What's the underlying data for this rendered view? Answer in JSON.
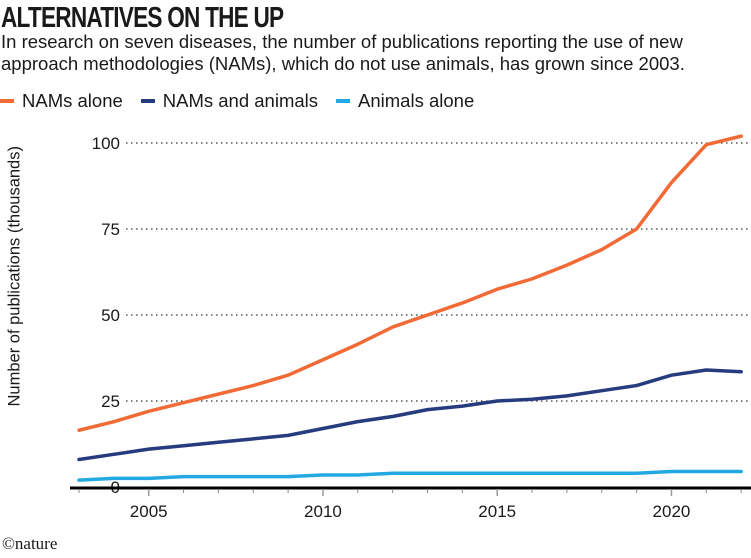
{
  "header": {
    "title": "ALTERNATIVES ON THE UP",
    "subtitle_lines": [
      "In research on seven diseases, the number of publications reporting the use of new",
      "approach methodologies (NAMs), which do not use animals, has grown since 2003."
    ]
  },
  "logo": "©nature",
  "chart_data": {
    "type": "line",
    "title": "ALTERNATIVES ON THE UP",
    "xlabel": "",
    "ylabel": "Number of publications (thousands)",
    "x": [
      2003,
      2004,
      2005,
      2006,
      2007,
      2008,
      2009,
      2010,
      2011,
      2012,
      2013,
      2014,
      2015,
      2016,
      2017,
      2018,
      2019,
      2020,
      2021,
      2022
    ],
    "xticks": [
      "2005",
      "2010",
      "2015",
      "2020"
    ],
    "yticks": [
      "0",
      "25",
      "50",
      "75",
      "100"
    ],
    "ylim": [
      0,
      100
    ],
    "grid": "horizontal dotted",
    "legend": "top-left",
    "series": [
      {
        "name": "NAMs alone",
        "color": "#f26a36",
        "values": [
          16.5,
          19,
          22,
          24.5,
          27,
          29.5,
          32.5,
          37,
          41.5,
          46.5,
          50,
          53.5,
          57.5,
          60.5,
          64.5,
          69,
          75,
          88.5,
          99.5,
          102
        ]
      },
      {
        "name": "NAMs and animals",
        "color": "#263c7f",
        "values": [
          8,
          9.5,
          11,
          12,
          13,
          14,
          15,
          17,
          19,
          20.5,
          22.5,
          23.5,
          25,
          25.5,
          26.5,
          28,
          29.5,
          32.5,
          34,
          33.5
        ]
      },
      {
        "name": "Animals alone",
        "color": "#23a9e1",
        "values": [
          2,
          2.5,
          2.5,
          3,
          3,
          3,
          3,
          3.5,
          3.5,
          4,
          4,
          4,
          4,
          4,
          4,
          4,
          4,
          4.5,
          4.5,
          4.5
        ]
      }
    ]
  }
}
